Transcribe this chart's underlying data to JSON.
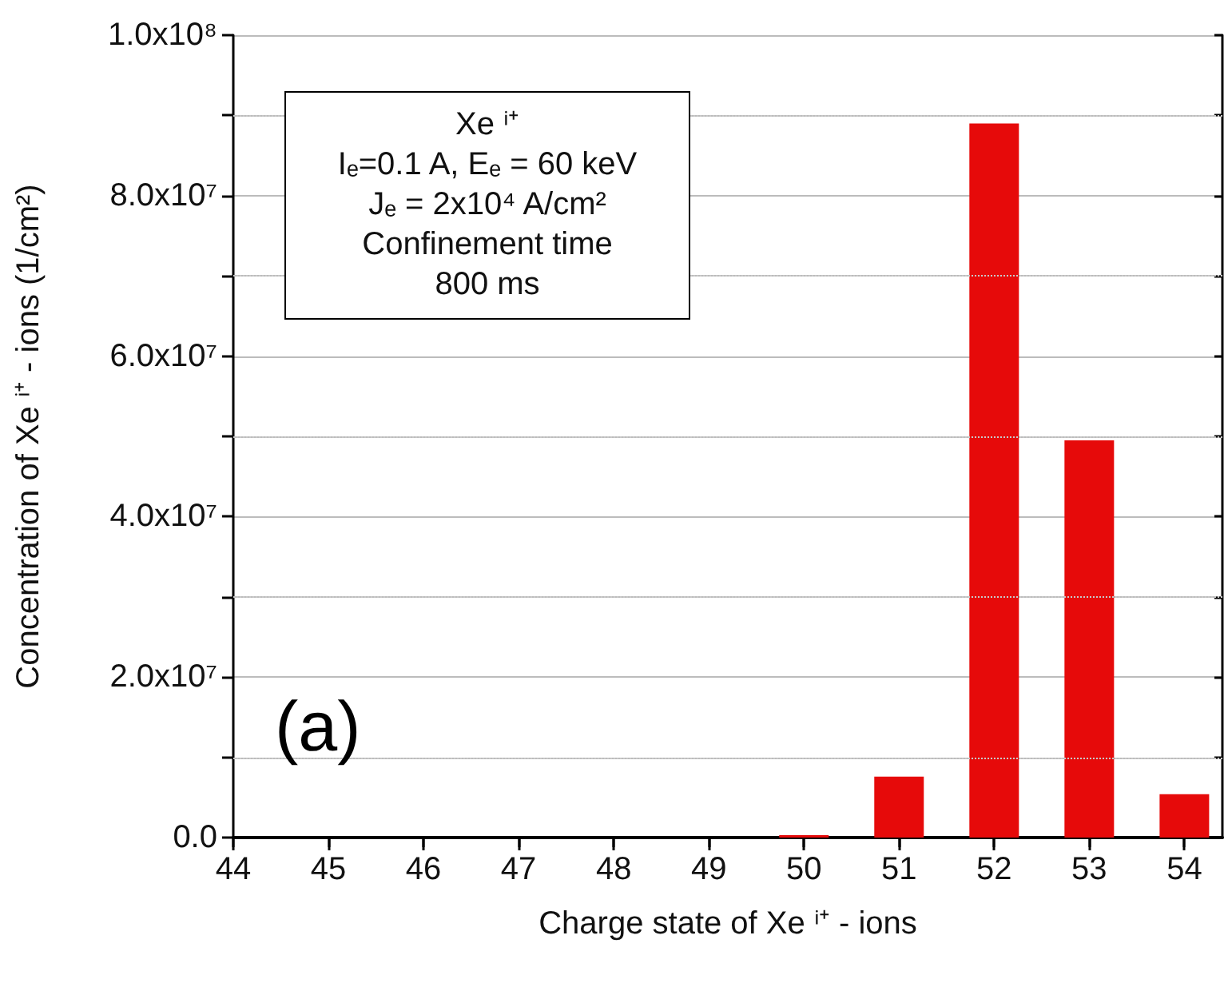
{
  "chart_data": {
    "type": "bar",
    "xlabel": "Charge state of Xe ⁱ⁺ - ions",
    "ylabel": "Concentration of Xe ⁱ⁺ - ions (1/cm²)",
    "annotations": [
      "Xe ⁱ⁺",
      "Iₑ=0.1 A, Eₑ = 60 keV",
      "Jₑ = 2x10⁴ A/cm²",
      "Confinement time",
      "800 ms",
      "(a)"
    ],
    "x": [
      50,
      51,
      52,
      53,
      54
    ],
    "values": [
      300000,
      7600000,
      89000000,
      49500000,
      5400000
    ],
    "color": "#e60a0a",
    "xlim": [
      44,
      54.4
    ],
    "xticks": [
      44,
      45,
      46,
      47,
      48,
      49,
      50,
      51,
      52,
      53,
      54
    ],
    "ylim": [
      0,
      100000000
    ],
    "yticks": [
      {
        "value": 0,
        "label": "0.0"
      },
      {
        "value": 10000000,
        "label": null
      },
      {
        "value": 20000000,
        "label": "2.0x10⁷"
      },
      {
        "value": 30000000,
        "label": null
      },
      {
        "value": 40000000,
        "label": "4.0x10⁷"
      },
      {
        "value": 50000000,
        "label": null
      },
      {
        "value": 60000000,
        "label": "6.0x10⁷"
      },
      {
        "value": 70000000,
        "label": null
      },
      {
        "value": 80000000,
        "label": "8.0x10⁷"
      },
      {
        "value": 90000000,
        "label": null
      },
      {
        "value": 100000000,
        "label": "1.0x10⁸"
      }
    ],
    "grid": "y"
  }
}
